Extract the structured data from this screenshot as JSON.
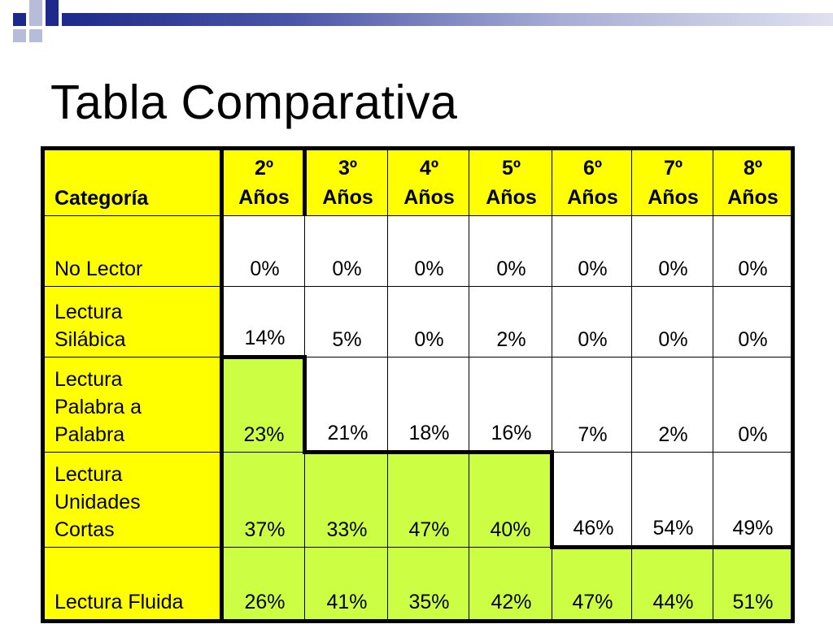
{
  "title": "Tabla Comparativa",
  "table": {
    "header": [
      "Categoría",
      "2º\nAños",
      "3º\nAños",
      "4º\nAños",
      "5º\nAños",
      "6º\nAños",
      "7º\nAños",
      "8º\nAños"
    ],
    "header_lines": [
      [
        "Categoría"
      ],
      [
        "2º",
        "Años"
      ],
      [
        "3º",
        "Años"
      ],
      [
        "4º",
        "Años"
      ],
      [
        "5º",
        "Años"
      ],
      [
        "6º",
        "Años"
      ],
      [
        "7º",
        "Años"
      ],
      [
        "8º",
        "Años"
      ]
    ],
    "rows": [
      {
        "category_lines": [
          "No Lector"
        ],
        "values": [
          "0%",
          "0%",
          "0%",
          "0%",
          "0%",
          "0%",
          "0%"
        ]
      },
      {
        "category_lines": [
          "Lectura",
          "Silábica"
        ],
        "values": [
          "14%",
          "5%",
          "0%",
          "2%",
          "0%",
          "0%",
          "0%"
        ]
      },
      {
        "category_lines": [
          "Lectura",
          "Palabra a",
          "Palabra"
        ],
        "values": [
          "23%",
          "21%",
          "18%",
          "16%",
          "7%",
          "2%",
          "0%"
        ]
      },
      {
        "category_lines": [
          "Lectura",
          "Unidades",
          "Cortas"
        ],
        "values": [
          "37%",
          "33%",
          "47%",
          "40%",
          "46%",
          "54%",
          "49%"
        ]
      },
      {
        "category_lines": [
          "Lectura Fluida"
        ],
        "values": [
          "26%",
          "41%",
          "35%",
          "42%",
          "47%",
          "44%",
          "51%"
        ]
      }
    ]
  },
  "colors": {
    "header_fill": "#ffff00",
    "category_fill": "#ffff00",
    "highlight_fill": "#ccff44",
    "default_fill": "#ffffff",
    "decoration": "#1e2a8a"
  }
}
